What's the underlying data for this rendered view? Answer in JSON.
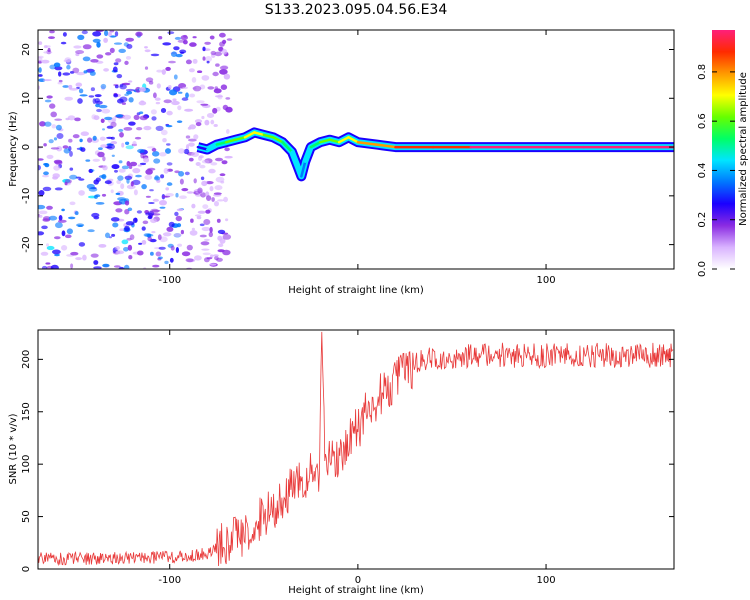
{
  "title": "S133.2023.095.04.56.E34",
  "colorbar": {
    "label": "Normalized spectral amplitude",
    "ticks": [
      "0.0",
      "0.2",
      "0.4",
      "0.6",
      "0.8"
    ],
    "tick_values": [
      0.0,
      0.2,
      0.4,
      0.6,
      0.8
    ],
    "range": [
      0,
      0.97
    ],
    "colormap": [
      "#ffffff",
      "#d9b3ff",
      "#8a2be2",
      "#1a00ff",
      "#0077ff",
      "#00e5ff",
      "#00ff66",
      "#66ff00",
      "#ffff00",
      "#ff9900",
      "#ff2a00",
      "#ff1f7a"
    ]
  },
  "chart_data": [
    {
      "type": "heatmap",
      "title": "",
      "xlabel": "Height of straight line (km)",
      "ylabel": "Frequency (Hz)",
      "xlim": [
        -170,
        168
      ],
      "ylim": [
        -25,
        24
      ],
      "xticks": [
        -100,
        0,
        100
      ],
      "xtick_labels": [
        "-100",
        "",
        "100"
      ],
      "yticks": [
        -20,
        -10,
        0,
        10,
        20
      ],
      "ytick_labels": [
        "-20",
        "-10",
        "0",
        "10",
        "20"
      ],
      "grid": false,
      "noise_region": {
        "x": [
          -170,
          -68
        ],
        "y": [
          -25,
          24
        ],
        "amplitude": [
          0.05,
          0.4
        ]
      },
      "ridge": {
        "x": [
          -85,
          -80,
          -75,
          -70,
          -65,
          -60,
          -55,
          -50,
          -45,
          -40,
          -35,
          -32,
          -30,
          -28,
          -25,
          -20,
          -15,
          -10,
          -5,
          0,
          10,
          20,
          40,
          60,
          80,
          100,
          120,
          140,
          160,
          168
        ],
        "frequency": [
          0.0,
          -0.5,
          0.5,
          1.0,
          1.5,
          2.0,
          3.0,
          2.5,
          2.0,
          1.0,
          -1.0,
          -4.0,
          -6.0,
          -3.0,
          0.0,
          1.0,
          1.5,
          1.0,
          2.0,
          1.0,
          0.5,
          0.0,
          0.0,
          0.0,
          0.0,
          0.0,
          0.0,
          0.0,
          0.0,
          0.0
        ],
        "amplitude": [
          0.3,
          0.4,
          0.5,
          0.6,
          0.6,
          0.7,
          0.7,
          0.6,
          0.6,
          0.5,
          0.45,
          0.4,
          0.35,
          0.45,
          0.55,
          0.6,
          0.65,
          0.7,
          0.7,
          0.75,
          0.8,
          0.85,
          0.9,
          0.95,
          0.95,
          0.95,
          0.95,
          0.95,
          0.95,
          0.95
        ]
      }
    },
    {
      "type": "line",
      "title": "",
      "xlabel": "Height of straight line (km)",
      "ylabel": "SNR (10 * v/v)",
      "xlim": [
        -170,
        168
      ],
      "ylim": [
        0,
        228
      ],
      "xticks": [
        -100,
        0,
        100
      ],
      "xtick_labels": [
        "-100",
        "0",
        "100"
      ],
      "yticks": [
        0,
        50,
        100,
        150,
        200
      ],
      "ytick_labels": [
        "0",
        "50",
        "100",
        "150",
        "200"
      ],
      "color": "#e83a3a",
      "grid": false,
      "series": [
        {
          "x": [
            -170,
            -150,
            -130,
            -110,
            -90,
            -80,
            -75,
            -70,
            -65,
            -60,
            -55,
            -50,
            -45,
            -40,
            -35,
            -30,
            -25,
            -20,
            -19,
            -18,
            -15,
            -10,
            -5,
            0,
            5,
            10,
            15,
            20,
            25,
            30,
            35,
            40,
            60,
            80,
            100,
            120,
            140,
            160,
            168
          ],
          "y": [
            10,
            10,
            10,
            11,
            12,
            15,
            20,
            25,
            30,
            35,
            42,
            50,
            58,
            68,
            75,
            85,
            90,
            95,
            210,
            100,
            105,
            110,
            120,
            135,
            150,
            162,
            172,
            180,
            190,
            195,
            200,
            202,
            203,
            204,
            204,
            204,
            204,
            204,
            204
          ]
        }
      ]
    }
  ]
}
